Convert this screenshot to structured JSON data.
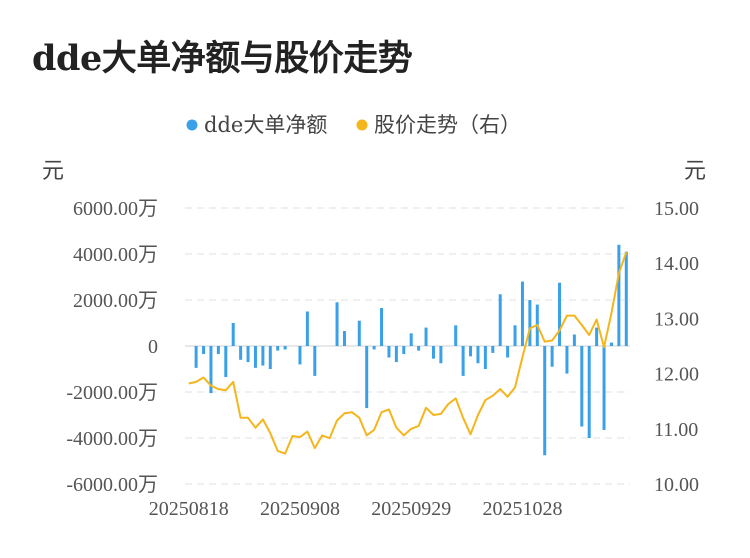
{
  "title": "dde大单净额与股价走势",
  "chart_data": {
    "type": "bar+line",
    "title": "dde大单净额与股价走势",
    "legend": [
      {
        "name": "dde大单净额",
        "color": "#3aa0e8"
      },
      {
        "name": "股价走势（右）",
        "color": "#f5b51c"
      }
    ],
    "legend_position": "top-center",
    "y_left_unit": "元",
    "y_right_unit": "元",
    "y_left_ticks": [
      "6000.00万",
      "4000.00万",
      "2000.00万",
      "0",
      "-2000.00万",
      "-4000.00万",
      "-6000.00万"
    ],
    "y_right_ticks": [
      "15.00",
      "14.00",
      "13.00",
      "12.00",
      "11.00",
      "10.00"
    ],
    "y_left_range": [
      -6000,
      6000
    ],
    "y_right_range": [
      10,
      15
    ],
    "x_tick_labels": [
      "20250818",
      "20250908",
      "20250929",
      "20251028"
    ],
    "x_tick_positions": [
      0,
      15,
      30,
      45
    ],
    "grid": "horizontal dashed",
    "series": [
      {
        "name": "dde大单净额",
        "kind": "bar",
        "unit": "万元",
        "values": [
          0,
          -950,
          -350,
          -2050,
          -350,
          -1350,
          1000,
          -600,
          -700,
          -950,
          -850,
          -1000,
          -200,
          -150,
          0,
          -800,
          1500,
          -1300,
          0,
          0,
          1900,
          650,
          0,
          1100,
          -2700,
          -150,
          1650,
          -500,
          -700,
          -350,
          550,
          -200,
          800,
          -550,
          -750,
          0,
          900,
          -1300,
          -450,
          -750,
          -1000,
          -300,
          2250,
          -500,
          900,
          2800,
          2000,
          1800,
          -4750,
          -900,
          2750,
          -1200,
          500,
          -3500,
          -4000,
          800,
          -3650,
          150,
          4400,
          4100
        ]
      },
      {
        "name": "股价走势（右）",
        "kind": "line",
        "unit": "元",
        "values": [
          11.82,
          11.85,
          11.93,
          11.78,
          11.72,
          11.7,
          11.85,
          11.2,
          11.2,
          11.02,
          11.17,
          10.92,
          10.6,
          10.55,
          10.87,
          10.85,
          10.95,
          10.65,
          10.88,
          10.83,
          11.15,
          11.28,
          11.3,
          11.2,
          10.88,
          10.98,
          11.3,
          11.35,
          11.02,
          10.88,
          11.0,
          11.05,
          11.38,
          11.25,
          11.27,
          11.45,
          11.55,
          11.2,
          10.9,
          11.25,
          11.52,
          11.6,
          11.72,
          11.58,
          11.75,
          12.3,
          12.82,
          12.88,
          12.58,
          12.6,
          12.78,
          13.05,
          13.05,
          12.88,
          12.7,
          12.98,
          12.48,
          13.1,
          13.82,
          14.2
        ]
      }
    ]
  }
}
